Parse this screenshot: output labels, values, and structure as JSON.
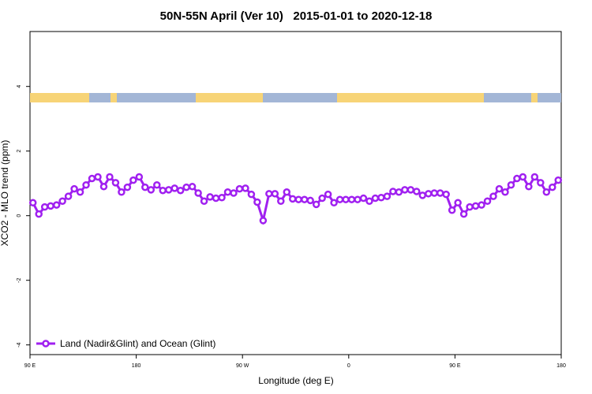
{
  "chart_data": {
    "type": "line",
    "title": "50N-55N April (Ver 10)   2015-01-01 to 2020-12-18",
    "xlabel": "Longitude (deg E)",
    "ylabel": "XCO2 - MLO trend (ppm)",
    "x": [
      92.5,
      97.5,
      102.5,
      107.5,
      112.5,
      117.5,
      122.5,
      127.5,
      132.5,
      137.5,
      142.5,
      147.5,
      152.5,
      157.5,
      162.5,
      167.5,
      172.5,
      177.5,
      182.5,
      187.5,
      192.5,
      197.5,
      202.5,
      207.5,
      212.5,
      217.5,
      222.5,
      227.5,
      232.5,
      237.5,
      242.5,
      247.5,
      252.5,
      257.5,
      262.5,
      267.5,
      272.5,
      277.5,
      282.5,
      287.5,
      292.5,
      297.5,
      302.5,
      307.5,
      312.5,
      317.5,
      322.5,
      327.5,
      332.5,
      337.5,
      342.5,
      347.5,
      352.5,
      357.5,
      362.5,
      367.5,
      372.5,
      377.5,
      382.5,
      387.5,
      392.5,
      397.5,
      402.5,
      407.5,
      412.5,
      417.5,
      422.5,
      427.5,
      432.5,
      437.5,
      442.5,
      447.5,
      452.5,
      457.5,
      462.5,
      467.5,
      472.5,
      477.5,
      482.5,
      487.5,
      492.5,
      497.5,
      502.5,
      507.5,
      512.5,
      517.5,
      522.5,
      527.5,
      532.5,
      537.5
    ],
    "series": [
      {
        "name": "Land (Nadir&Glint) and Ocean (Glint)",
        "color": "#a020f0",
        "values": [
          0.4,
          0.05,
          0.27,
          0.3,
          0.33,
          0.45,
          0.6,
          0.83,
          0.73,
          0.95,
          1.15,
          1.2,
          0.9,
          1.2,
          1.02,
          0.73,
          0.88,
          1.1,
          1.2,
          0.88,
          0.8,
          0.95,
          0.78,
          0.8,
          0.85,
          0.78,
          0.88,
          0.9,
          0.7,
          0.45,
          0.58,
          0.54,
          0.56,
          0.73,
          0.7,
          0.83,
          0.85,
          0.66,
          0.42,
          -0.15,
          0.68,
          0.68,
          0.45,
          0.73,
          0.52,
          0.5,
          0.5,
          0.47,
          0.35,
          0.54,
          0.66,
          0.4,
          0.5,
          0.5,
          0.5,
          0.5,
          0.54,
          0.45,
          0.54,
          0.56,
          0.6,
          0.75,
          0.73,
          0.8,
          0.8,
          0.75,
          0.63,
          0.68,
          0.7,
          0.7,
          0.66,
          0.17,
          0.4,
          0.05,
          0.27,
          0.3,
          0.33,
          0.45,
          0.6,
          0.83,
          0.73,
          0.95,
          1.15,
          1.2,
          0.9,
          1.2,
          1.02,
          0.73,
          0.88,
          1.1
        ]
      }
    ],
    "xlim": [
      90,
      540
    ],
    "xticks": [
      {
        "value": 90,
        "label": "90 E"
      },
      180,
      {
        "value": 270,
        "label": "90 W"
      },
      {
        "value": 360,
        "label": "0"
      },
      {
        "value": 450,
        "label": "90 E"
      },
      {
        "value": 540,
        "label": "180"
      }
    ],
    "ylim": [
      -4.3,
      5.7
    ],
    "yticks": [
      -4,
      -2,
      0,
      2,
      4
    ],
    "legend": "bottomleft"
  }
}
